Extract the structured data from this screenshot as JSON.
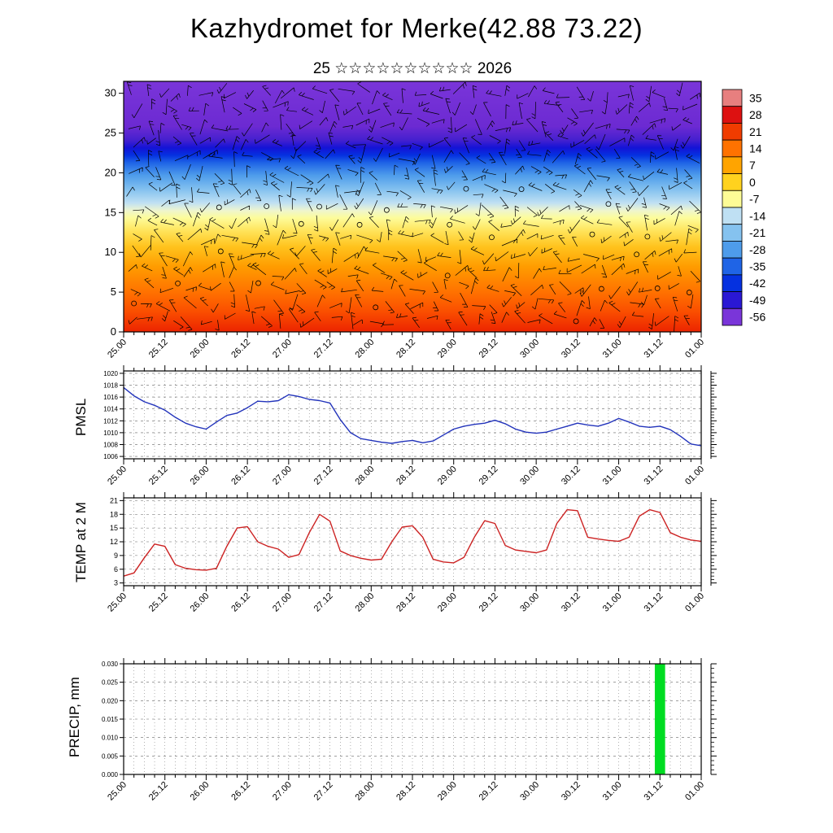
{
  "page": {
    "title": "Kazhydromet for Merke(42.88 73.22)",
    "subtitle": "25 ☆☆☆☆☆☆☆☆☆☆ 2026"
  },
  "time_axis": {
    "labels": [
      "25.00",
      "25.12",
      "26.00",
      "26.12",
      "27.00",
      "27.12",
      "28.00",
      "28.12",
      "29.00",
      "29.12",
      "30.00",
      "30.12",
      "31.00",
      "31.12",
      "01.00"
    ],
    "hours": [
      0,
      12,
      24,
      36,
      48,
      60,
      72,
      84,
      96,
      108,
      120,
      132,
      144,
      156,
      168
    ],
    "minor_step_hours": 3,
    "total_hours": 168
  },
  "chart_data": [
    {
      "type": "heatmap",
      "name": "temperature-cross-section",
      "title": "",
      "ylim": [
        0,
        31.5
      ],
      "yticks": [
        0,
        5,
        10,
        15,
        20,
        25,
        30
      ],
      "legend_position": "right",
      "grid": false,
      "colorbar": [
        {
          "label": "35",
          "color": "#e77f7f"
        },
        {
          "label": "28",
          "color": "#dd1111"
        },
        {
          "label": "21",
          "color": "#f03c00"
        },
        {
          "label": "14",
          "color": "#ff7200"
        },
        {
          "label": "7",
          "color": "#ffa400"
        },
        {
          "label": "0",
          "color": "#ffd21e"
        },
        {
          "label": "-7",
          "color": "#fdfc96"
        },
        {
          "label": "-14",
          "color": "#bfe0f3"
        },
        {
          "label": "-21",
          "color": "#85c2ef"
        },
        {
          "label": "-28",
          "color": "#4e9ceb"
        },
        {
          "label": "-35",
          "color": "#1f64e6"
        },
        {
          "label": "-42",
          "color": "#0531e0"
        },
        {
          "label": "-49",
          "color": "#2a18d4"
        },
        {
          "label": "-56",
          "color": "#7a35d9"
        }
      ],
      "gradient_stops": [
        {
          "at": 0.0,
          "color": "#7a35d9"
        },
        {
          "at": 0.18,
          "color": "#6c2ad2"
        },
        {
          "at": 0.235,
          "color": "#4420cf"
        },
        {
          "at": 0.265,
          "color": "#1413d6"
        },
        {
          "at": 0.295,
          "color": "#0531e0"
        },
        {
          "at": 0.325,
          "color": "#1f64e6"
        },
        {
          "at": 0.375,
          "color": "#4e9ceb"
        },
        {
          "at": 0.43,
          "color": "#82c0ef"
        },
        {
          "at": 0.485,
          "color": "#bfe0f3"
        },
        {
          "at": 0.515,
          "color": "#eef5cf"
        },
        {
          "at": 0.545,
          "color": "#fdfc9a"
        },
        {
          "at": 0.6,
          "color": "#ffe257"
        },
        {
          "at": 0.66,
          "color": "#ffc31d"
        },
        {
          "at": 0.74,
          "color": "#ff9c00"
        },
        {
          "at": 0.84,
          "color": "#ff7200"
        },
        {
          "at": 0.92,
          "color": "#fa4e00"
        },
        {
          "at": 1.0,
          "color": "#ec2400"
        }
      ],
      "wind_barbs": {
        "cols": 40,
        "rows": 15,
        "seed": 7
      }
    },
    {
      "type": "line",
      "name": "pmsl",
      "title": "PMSL",
      "color": "#2233bb",
      "ylim": [
        1005.6,
        1020.4
      ],
      "yticks": [
        1006,
        1008,
        1010,
        1012,
        1014,
        1016,
        1018,
        1020
      ],
      "ytick_labels": [
        "1006",
        "1008",
        "1010",
        "1012",
        "1014",
        "1016",
        "1018",
        "1020"
      ],
      "label_size": 8,
      "x_step_hours": 3,
      "values": [
        1017.6,
        1016.2,
        1015.2,
        1014.6,
        1013.8,
        1012.6,
        1011.6,
        1011.0,
        1010.6,
        1011.8,
        1012.9,
        1013.3,
        1014.2,
        1015.3,
        1015.2,
        1015.4,
        1016.4,
        1016.1,
        1015.6,
        1015.4,
        1015.0,
        1012.2,
        1010.0,
        1009.0,
        1008.7,
        1008.4,
        1008.2,
        1008.5,
        1008.7,
        1008.3,
        1008.6,
        1009.6,
        1010.6,
        1011.1,
        1011.4,
        1011.6,
        1012.1,
        1011.5,
        1010.6,
        1010.1,
        1009.9,
        1010.1,
        1010.6,
        1011.1,
        1011.6,
        1011.3,
        1011.1,
        1011.6,
        1012.4,
        1011.8,
        1011.1,
        1010.9,
        1011.1,
        1010.5,
        1009.4,
        1008.1,
        1007.8
      ]
    },
    {
      "type": "line",
      "name": "temp2m",
      "title": "TEMP at 2 M",
      "color": "#cc2222",
      "ylim": [
        2.4,
        21.6
      ],
      "yticks": [
        3,
        6,
        9,
        12,
        15,
        18,
        21
      ],
      "ytick_labels": [
        "3",
        "6",
        "9",
        "12",
        "15",
        "18",
        "21"
      ],
      "label_size": 9,
      "x_step_hours": 3,
      "values": [
        4.5,
        5.2,
        8.5,
        11.5,
        11.0,
        7.0,
        6.2,
        5.9,
        5.8,
        6.2,
        11.0,
        15.0,
        15.3,
        12.0,
        11.0,
        10.4,
        8.6,
        9.2,
        14.0,
        18.0,
        16.5,
        10.0,
        9.0,
        8.4,
        8.0,
        8.2,
        12.0,
        15.2,
        15.5,
        13.0,
        8.2,
        7.6,
        7.4,
        8.6,
        13.0,
        16.6,
        16.0,
        11.2,
        10.2,
        9.9,
        9.6,
        10.2,
        16.0,
        19.0,
        18.8,
        13.0,
        12.6,
        12.3,
        12.1,
        13.0,
        17.6,
        19.0,
        18.4,
        14.0,
        13.0,
        12.4,
        12.1
      ]
    },
    {
      "type": "bar",
      "name": "precip",
      "title": "PRECIP, mm",
      "color": "#00dd22",
      "ylim": [
        0,
        0.03
      ],
      "yticks": [
        0,
        0.005,
        0.01,
        0.015,
        0.02,
        0.025,
        0.03
      ],
      "ytick_labels": [
        "0.000",
        "0.005",
        "0.010",
        "0.015",
        "0.020",
        "0.025",
        "0.030"
      ],
      "label_size": 8,
      "bars": [
        {
          "near_label": "31.12",
          "start_hour": 154.5,
          "end_hour": 157.5,
          "value": 0.03
        }
      ]
    }
  ]
}
